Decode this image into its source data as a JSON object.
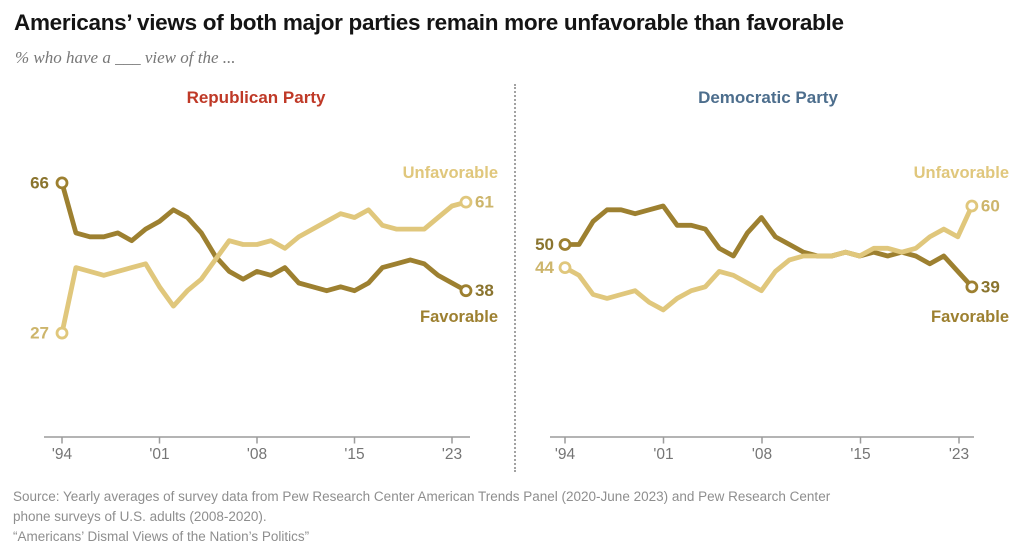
{
  "title": "Americans’ views of both major parties remain more unfavorable than favorable",
  "subtitle": "% who have a ___ view of the ...",
  "colors": {
    "unfavorable_line": "#e0c77c",
    "favorable_line": "#9d8030",
    "unfavorable_value_label": "#cdb56b",
    "favorable_value_label": "#8a742e",
    "republican_title": "#bf3927",
    "democratic_title": "#4d6e8d",
    "axis": "#9b9b9b",
    "tick_label": "#757575",
    "marker_fill": "#ffffff"
  },
  "x_axis": {
    "tick_labels": [
      "'94",
      "'01",
      "'08",
      "'15",
      "'23"
    ],
    "tick_years": [
      1994,
      2001,
      2008,
      2015,
      2023
    ]
  },
  "chart_data": [
    {
      "type": "line",
      "title": "Republican Party",
      "xlim": [
        1994,
        2023
      ],
      "ylim": [
        0,
        92
      ],
      "grid": false,
      "legend_position": "inline-right",
      "x": [
        1994,
        1995,
        1996,
        1997,
        1998,
        1999,
        2000,
        2001,
        2002,
        2003,
        2004,
        2005,
        2006,
        2007,
        2008,
        2009,
        2010,
        2011,
        2012,
        2013,
        2014,
        2015,
        2016,
        2017,
        2018,
        2019,
        2020,
        2021,
        2022,
        2023
      ],
      "series": [
        {
          "name": "Favorable",
          "role": "favorable",
          "start_value": 66,
          "end_value": 38,
          "values": [
            66,
            53,
            52,
            52,
            53,
            51,
            54,
            56,
            59,
            57,
            53,
            47,
            43,
            41,
            43,
            42,
            44,
            40,
            39,
            38,
            39,
            38,
            40,
            44,
            45,
            46,
            45,
            42,
            40,
            38
          ]
        },
        {
          "name": "Unfavorable",
          "role": "unfavorable",
          "start_value": 27,
          "end_value": 61,
          "values": [
            27,
            44,
            43,
            42,
            43,
            44,
            45,
            39,
            34,
            38,
            41,
            46,
            51,
            50,
            50,
            51,
            49,
            52,
            54,
            56,
            58,
            57,
            59,
            55,
            54,
            54,
            54,
            57,
            60,
            61
          ]
        }
      ]
    },
    {
      "type": "line",
      "title": "Democratic Party",
      "xlim": [
        1994,
        2023
      ],
      "ylim": [
        0,
        92
      ],
      "grid": false,
      "legend_position": "inline-right",
      "x": [
        1994,
        1995,
        1996,
        1997,
        1998,
        1999,
        2000,
        2001,
        2002,
        2003,
        2004,
        2005,
        2006,
        2007,
        2008,
        2009,
        2010,
        2011,
        2012,
        2013,
        2014,
        2015,
        2016,
        2017,
        2018,
        2019,
        2020,
        2021,
        2022,
        2023
      ],
      "series": [
        {
          "name": "Favorable",
          "role": "favorable",
          "start_value": 50,
          "end_value": 39,
          "values": [
            50,
            50,
            56,
            59,
            59,
            58,
            59,
            60,
            55,
            55,
            54,
            49,
            47,
            53,
            57,
            52,
            50,
            48,
            47,
            47,
            48,
            47,
            48,
            47,
            48,
            47,
            45,
            47,
            43,
            39
          ]
        },
        {
          "name": "Unfavorable",
          "role": "unfavorable",
          "start_value": 44,
          "end_value": 60,
          "values": [
            44,
            42,
            37,
            36,
            37,
            38,
            35,
            33,
            36,
            38,
            39,
            43,
            42,
            40,
            38,
            43,
            46,
            47,
            47,
            47,
            48,
            47,
            49,
            49,
            48,
            49,
            52,
            54,
            52,
            60
          ]
        }
      ]
    }
  ],
  "source": {
    "line1": "Source: Yearly averages of survey data from Pew Research Center American Trends Panel (2020-June 2023) and Pew Research Center",
    "line2": "phone surveys of U.S. adults (2008-2020).",
    "line3": "“Americans’ Dismal Views of the Nation’s Politics”"
  }
}
